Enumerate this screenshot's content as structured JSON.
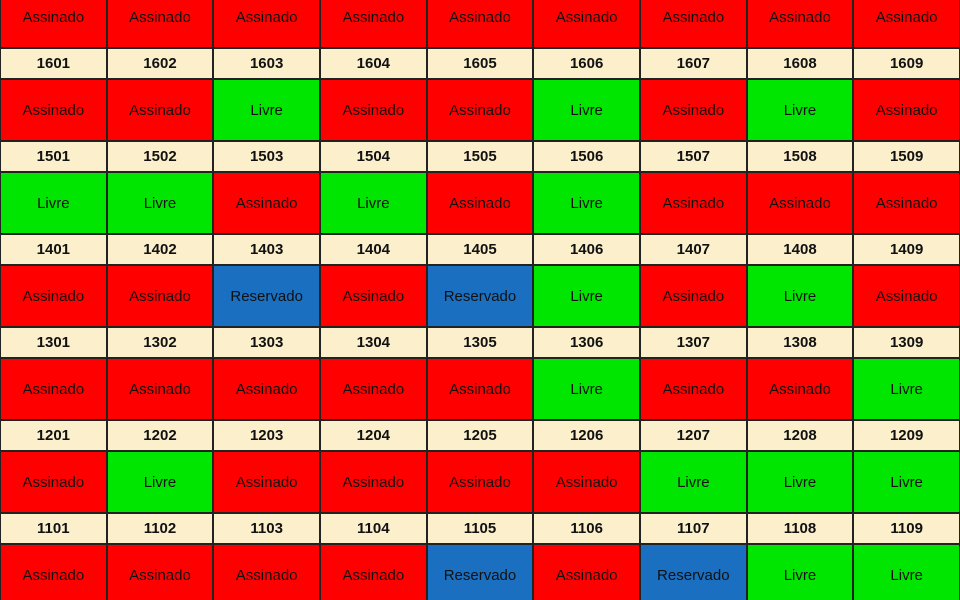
{
  "status_colors": {
    "Assinado": "#ff0000",
    "Livre": "#00e600",
    "Reservado": "#1a6fc0"
  },
  "rows": [
    {
      "units": [
        {
          "status": "Assinado",
          "number": "1601"
        },
        {
          "status": "Assinado",
          "number": "1602"
        },
        {
          "status": "Assinado",
          "number": "1603"
        },
        {
          "status": "Assinado",
          "number": "1604"
        },
        {
          "status": "Assinado",
          "number": "1605"
        },
        {
          "status": "Assinado",
          "number": "1606"
        },
        {
          "status": "Assinado",
          "number": "1607"
        },
        {
          "status": "Assinado",
          "number": "1608"
        },
        {
          "status": "Assinado",
          "number": "1609"
        }
      ]
    },
    {
      "units": [
        {
          "status": "Assinado",
          "number": "1501"
        },
        {
          "status": "Assinado",
          "number": "1502"
        },
        {
          "status": "Livre",
          "number": "1503"
        },
        {
          "status": "Assinado",
          "number": "1504"
        },
        {
          "status": "Assinado",
          "number": "1505"
        },
        {
          "status": "Livre",
          "number": "1506"
        },
        {
          "status": "Assinado",
          "number": "1507"
        },
        {
          "status": "Livre",
          "number": "1508"
        },
        {
          "status": "Assinado",
          "number": "1509"
        }
      ]
    },
    {
      "units": [
        {
          "status": "Livre",
          "number": "1401"
        },
        {
          "status": "Livre",
          "number": "1402"
        },
        {
          "status": "Assinado",
          "number": "1403"
        },
        {
          "status": "Livre",
          "number": "1404"
        },
        {
          "status": "Assinado",
          "number": "1405"
        },
        {
          "status": "Livre",
          "number": "1406"
        },
        {
          "status": "Assinado",
          "number": "1407"
        },
        {
          "status": "Assinado",
          "number": "1408"
        },
        {
          "status": "Assinado",
          "number": "1409"
        }
      ]
    },
    {
      "units": [
        {
          "status": "Assinado",
          "number": "1301"
        },
        {
          "status": "Assinado",
          "number": "1302"
        },
        {
          "status": "Reservado",
          "number": "1303"
        },
        {
          "status": "Assinado",
          "number": "1304"
        },
        {
          "status": "Reservado",
          "number": "1305"
        },
        {
          "status": "Livre",
          "number": "1306"
        },
        {
          "status": "Assinado",
          "number": "1307"
        },
        {
          "status": "Livre",
          "number": "1308"
        },
        {
          "status": "Assinado",
          "number": "1309"
        }
      ]
    },
    {
      "units": [
        {
          "status": "Assinado",
          "number": "1201"
        },
        {
          "status": "Assinado",
          "number": "1202"
        },
        {
          "status": "Assinado",
          "number": "1203"
        },
        {
          "status": "Assinado",
          "number": "1204"
        },
        {
          "status": "Assinado",
          "number": "1205"
        },
        {
          "status": "Livre",
          "number": "1206"
        },
        {
          "status": "Assinado",
          "number": "1207"
        },
        {
          "status": "Assinado",
          "number": "1208"
        },
        {
          "status": "Livre",
          "number": "1209"
        }
      ]
    },
    {
      "units": [
        {
          "status": "Assinado",
          "number": "1101"
        },
        {
          "status": "Livre",
          "number": "1102"
        },
        {
          "status": "Assinado",
          "number": "1103"
        },
        {
          "status": "Assinado",
          "number": "1104"
        },
        {
          "status": "Assinado",
          "number": "1105"
        },
        {
          "status": "Assinado",
          "number": "1106"
        },
        {
          "status": "Livre",
          "number": "1107"
        },
        {
          "status": "Livre",
          "number": "1108"
        },
        {
          "status": "Livre",
          "number": "1109"
        }
      ]
    },
    {
      "units": [
        {
          "status": "Assinado"
        },
        {
          "status": "Assinado"
        },
        {
          "status": "Assinado"
        },
        {
          "status": "Assinado"
        },
        {
          "status": "Reservado"
        },
        {
          "status": "Assinado"
        },
        {
          "status": "Reservado"
        },
        {
          "status": "Livre"
        },
        {
          "status": "Livre"
        }
      ]
    }
  ]
}
